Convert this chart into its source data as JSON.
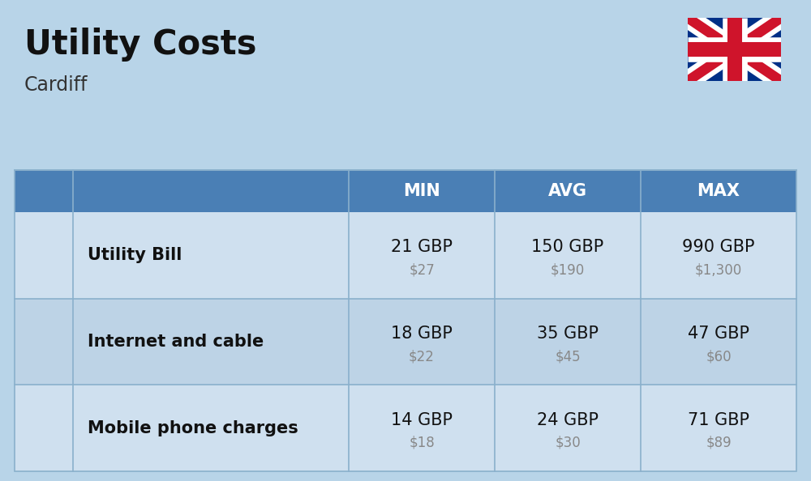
{
  "title": "Utility Costs",
  "subtitle": "Cardiff",
  "background_color": "#b8d4e8",
  "header_bg_color": "#4a7fb5",
  "header_text_color": "#ffffff",
  "row_bg_color_1": "#cfe0ef",
  "row_bg_color_2": "#bdd3e6",
  "divider_color": "#8ab0cc",
  "header_labels": [
    "MIN",
    "AVG",
    "MAX"
  ],
  "rows": [
    {
      "label": "Utility Bill",
      "min_gbp": "21 GBP",
      "min_usd": "$27",
      "avg_gbp": "150 GBP",
      "avg_usd": "$190",
      "max_gbp": "990 GBP",
      "max_usd": "$1,300"
    },
    {
      "label": "Internet and cable",
      "min_gbp": "18 GBP",
      "min_usd": "$22",
      "avg_gbp": "35 GBP",
      "avg_usd": "$45",
      "max_gbp": "47 GBP",
      "max_usd": "$60"
    },
    {
      "label": "Mobile phone charges",
      "min_gbp": "14 GBP",
      "min_usd": "$18",
      "avg_gbp": "24 GBP",
      "avg_usd": "$30",
      "max_gbp": "71 GBP",
      "max_usd": "$89"
    }
  ],
  "title_fontsize": 30,
  "subtitle_fontsize": 17,
  "header_fontsize": 15,
  "label_fontsize": 15,
  "value_fontsize": 15,
  "usd_fontsize": 12
}
